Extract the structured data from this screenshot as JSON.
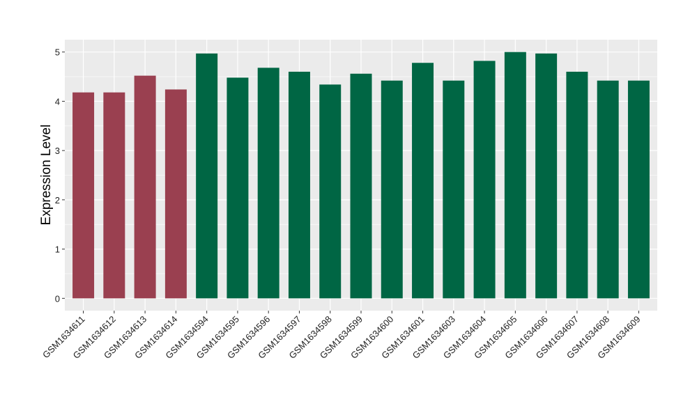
{
  "chart_data": {
    "type": "bar",
    "title": "",
    "xlabel": "",
    "ylabel": "Expression Level",
    "ylim": [
      -0.25,
      5.25
    ],
    "yticks": [
      0,
      1,
      2,
      3,
      4,
      5
    ],
    "grid": true,
    "legend": "none",
    "categories": [
      "GSM1634611",
      "GSM1634612",
      "GSM1634613",
      "GSM1634614",
      "GSM1634594",
      "GSM1634595",
      "GSM1634596",
      "GSM1634597",
      "GSM1634598",
      "GSM1634599",
      "GSM1634600",
      "GSM1634601",
      "GSM1634603",
      "GSM1634604",
      "GSM1634605",
      "GSM1634606",
      "GSM1634607",
      "GSM1634608",
      "GSM1634609"
    ],
    "values": [
      4.18,
      4.18,
      4.52,
      4.24,
      4.97,
      4.48,
      4.68,
      4.6,
      4.34,
      4.56,
      4.42,
      4.78,
      4.42,
      4.82,
      5.0,
      4.97,
      4.6,
      4.42,
      4.42
    ],
    "group_index": [
      0,
      0,
      0,
      0,
      1,
      1,
      1,
      1,
      1,
      1,
      1,
      1,
      1,
      1,
      1,
      1,
      1,
      1,
      1
    ],
    "colors": [
      "#9a4050",
      "#006644"
    ],
    "panel_background": "#ebebeb",
    "gridline_color": "#ffffff"
  }
}
